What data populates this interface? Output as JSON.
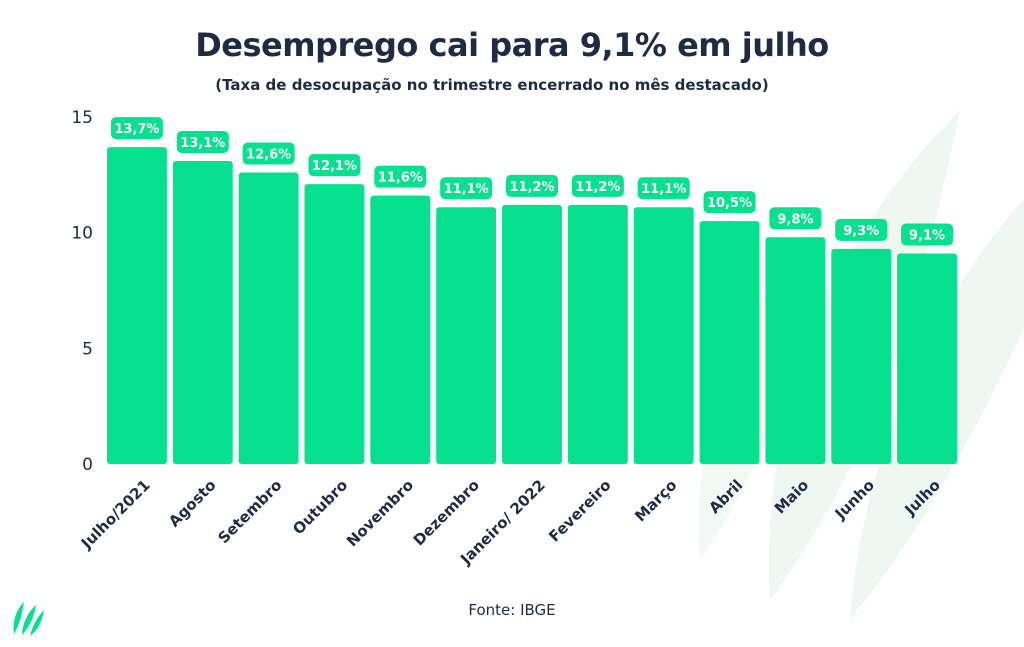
{
  "title": "Desemprego cai para 9,1% em julho",
  "subtitle": "(Taxa de desocupação no trimestre encerrado no mês destacado)",
  "source": "Fonte: IBGE",
  "colors": {
    "bar": "#06e190",
    "label_bg": "#06e190",
    "label_text": "#ffffff",
    "text": "#1f2a44",
    "watermark": "#eef7f2",
    "logo": "#06e190"
  },
  "icons": {
    "logo": "leaf-logo-icon",
    "watermark": "leaf-watermark-icon"
  },
  "chart_data": {
    "type": "bar",
    "categories": [
      "Julho/2021",
      "Agosto",
      "Setembro",
      "Outubro",
      "Novembro",
      "Dezembro",
      "Janeiro/ 2022",
      "Fevereiro",
      "Março",
      "Abril",
      "Maio",
      "Junho",
      "Julho"
    ],
    "values": [
      13.7,
      13.1,
      12.6,
      12.1,
      11.6,
      11.1,
      11.2,
      11.2,
      11.1,
      10.5,
      9.8,
      9.3,
      9.1
    ],
    "data_labels": [
      "13,7%",
      "13,1%",
      "12,6%",
      "12,1%",
      "11,6%",
      "11,1%",
      "11,2%",
      "11,2%",
      "11,1%",
      "10,5%",
      "9,8%",
      "9,3%",
      "9,1%"
    ],
    "title": "Desemprego cai para 9,1% em julho",
    "subtitle": "(Taxa de desocupação no trimestre encerrado no mês destacado)",
    "xlabel": "",
    "ylabel": "",
    "ylim": [
      0,
      15
    ],
    "yticks": [
      0,
      5,
      10,
      15
    ],
    "grid": false,
    "legend": "none"
  }
}
